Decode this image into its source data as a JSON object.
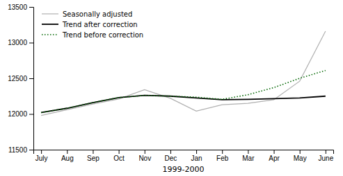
{
  "chart_data": {
    "type": "line",
    "xlabel": "1999-2000",
    "categories": [
      "July",
      "Aug",
      "Sep",
      "Oct",
      "Nov",
      "Dec",
      "Jan",
      "Feb",
      "Mar",
      "Apr",
      "May",
      "June"
    ],
    "series": [
      {
        "name": "Seasonally adjusted",
        "color": "#b0b0b0",
        "line_style": "solid",
        "values": [
          11980,
          12060,
          12140,
          12210,
          12340,
          12220,
          12040,
          12130,
          12150,
          12200,
          12460,
          13160
        ]
      },
      {
        "name": "Trend after correction",
        "color": "#000000",
        "line_style": "solid",
        "values": [
          12020,
          12080,
          12160,
          12230,
          12260,
          12250,
          12225,
          12200,
          12205,
          12215,
          12225,
          12250
        ]
      },
      {
        "name": "Trend before correction",
        "color": "#006600",
        "line_style": "dotted",
        "values": [
          12020,
          12080,
          12160,
          12230,
          12260,
          12250,
          12235,
          12205,
          12270,
          12370,
          12500,
          12610
        ]
      }
    ],
    "ylim": [
      11500,
      13500
    ],
    "yticks": [
      11500,
      12000,
      12500,
      13000,
      13500
    ],
    "grid": false,
    "legend": "upper left"
  }
}
